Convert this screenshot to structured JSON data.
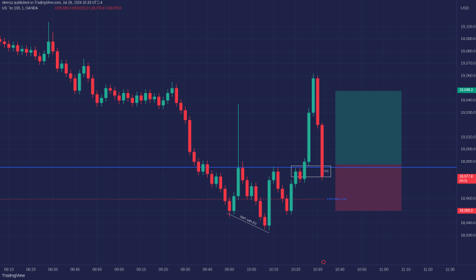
{
  "header": {
    "byline": "deeesz published on TradingView.com, Jul 26, 2024 10:33 UTC-4",
    "symbol": "US Tec 100, 1, OANDA",
    "ohlc": "O19,020.0 H19,022.0 L18,975.0 C18,978.0"
  },
  "footer": "TradingView",
  "chart_data": {
    "type": "candlestick",
    "currency": "USD",
    "x": [
      "08:06",
      "08:08",
      "08:10",
      "08:12",
      "08:14",
      "08:16",
      "08:18",
      "08:20",
      "08:22",
      "08:24",
      "08:26",
      "08:28",
      "08:30",
      "08:32",
      "08:34",
      "08:36",
      "08:38",
      "08:40",
      "08:42",
      "08:44",
      "08:46",
      "08:48",
      "08:50",
      "08:52",
      "08:54",
      "08:56",
      "08:58",
      "09:00",
      "09:02",
      "09:04",
      "09:06",
      "09:08",
      "09:10",
      "09:12",
      "09:14",
      "09:16",
      "09:18",
      "09:20",
      "09:22",
      "09:24",
      "09:26",
      "09:28",
      "09:30",
      "09:32",
      "09:34",
      "09:36",
      "09:38",
      "09:40",
      "09:42",
      "09:44",
      "09:46",
      "09:48",
      "09:50",
      "09:52",
      "09:54",
      "09:56",
      "09:58",
      "10:00",
      "10:02",
      "10:04",
      "10:06",
      "10:08",
      "10:10",
      "10:12",
      "10:14",
      "10:16",
      "10:18",
      "10:20",
      "10:22",
      "10:24",
      "10:26",
      "10:28",
      "10:30",
      "10:32"
    ],
    "open": [
      19090,
      19088,
      19086,
      19083,
      19085,
      19080,
      19082,
      19079,
      19081,
      19076,
      19072,
      19078,
      19088,
      19080,
      19066,
      19070,
      19062,
      19058,
      19048,
      19062,
      19068,
      19058,
      19045,
      19038,
      19042,
      19050,
      19048,
      19044,
      19040,
      19046,
      19042,
      19038,
      19044,
      19040,
      19046,
      19041,
      19043,
      19036,
      19040,
      19046,
      19050,
      19038,
      19032,
      19024,
      18998,
      18990,
      18982,
      18988,
      18980,
      18972,
      18978,
      18968,
      18958,
      18950,
      18962,
      18985,
      18975,
      18962,
      18970,
      18958,
      18945,
      18938,
      18975,
      18982,
      18968,
      18960,
      18950,
      18972,
      18982,
      18976,
      18990,
      19030,
      19058,
      19020
    ],
    "high": [
      19093,
      19091,
      19089,
      19088,
      19088,
      19085,
      19085,
      19084,
      19084,
      19079,
      19081,
      19104,
      19096,
      19083,
      19073,
      19073,
      19065,
      19061,
      19065,
      19074,
      19071,
      19061,
      19048,
      19045,
      19053,
      19053,
      19051,
      19047,
      19049,
      19049,
      19045,
      19047,
      19047,
      19049,
      19049,
      19046,
      19046,
      19043,
      19049,
      19055,
      19053,
      19041,
      19035,
      19027,
      19001,
      18993,
      18991,
      18991,
      18983,
      18981,
      18981,
      18971,
      18961,
      18965,
      19037,
      18990,
      18978,
      18973,
      18973,
      18961,
      18948,
      18978,
      18986,
      18985,
      18971,
      18963,
      18975,
      18985,
      18985,
      18993,
      19034,
      19062,
      19060,
      19022
    ],
    "low": [
      19085,
      19083,
      19080,
      19080,
      19077,
      19077,
      19076,
      19076,
      19073,
      19069,
      19069,
      19075,
      19077,
      19063,
      19063,
      19059,
      19055,
      19045,
      19045,
      19059,
      19055,
      19042,
      19035,
      19035,
      19039,
      19045,
      19041,
      19037,
      19037,
      19039,
      19035,
      19035,
      19037,
      19037,
      19038,
      19038,
      19033,
      19033,
      19037,
      19043,
      19035,
      19029,
      19021,
      18995,
      18987,
      18979,
      18979,
      18977,
      18969,
      18969,
      18965,
      18955,
      18945,
      18947,
      18959,
      18972,
      18959,
      18959,
      18955,
      18942,
      18935,
      18934,
      18972,
      18965,
      18957,
      18947,
      18947,
      18969,
      18973,
      18973,
      18987,
      19027,
      19017,
      18975
    ],
    "close": [
      19088,
      19086,
      19083,
      19085,
      19080,
      19082,
      19079,
      19081,
      19076,
      19072,
      19078,
      19088,
      19080,
      19066,
      19070,
      19062,
      19058,
      19048,
      19062,
      19068,
      19058,
      19045,
      19038,
      19042,
      19050,
      19048,
      19044,
      19040,
      19046,
      19042,
      19038,
      19044,
      19040,
      19046,
      19041,
      19043,
      19036,
      19040,
      19046,
      19050,
      19038,
      19032,
      19024,
      18998,
      18990,
      18982,
      18988,
      18980,
      18972,
      18978,
      18968,
      18958,
      18950,
      18962,
      18985,
      18975,
      18962,
      18970,
      18958,
      18945,
      18938,
      18975,
      18982,
      18968,
      18960,
      18950,
      18972,
      18982,
      18976,
      18990,
      19030,
      19058,
      19020,
      18978
    ],
    "up_color": "#22ab94",
    "down_color": "#f23645",
    "xlim": [
      "08:06",
      "11:33"
    ],
    "ylim": [
      18906,
      19114
    ],
    "xticks": [
      "08:10",
      "08:20",
      "08:30",
      "08:40",
      "08:50",
      "09:00",
      "09:10",
      "09:20",
      "09:30",
      "09:40",
      "09:50",
      "10:00",
      "10:10",
      "10:20",
      "10:30",
      "10:40",
      "10:50",
      "11:00",
      "11:10",
      "11:20",
      "11:30"
    ],
    "yticks": [
      {
        "value": 19100,
        "label": "19,100.0"
      },
      {
        "value": 19090,
        "label": "19,090.0"
      },
      {
        "value": 19080,
        "label": "19,080.0"
      },
      {
        "value": 19070,
        "label": "19,070.0"
      },
      {
        "value": 19060,
        "label": "19,060.0"
      },
      {
        "value": 19040,
        "label": "19,040.0"
      },
      {
        "value": 19030,
        "label": "19,030.0"
      },
      {
        "value": 19010,
        "label": "19,010.0"
      },
      {
        "value": 19000,
        "label": "19,000.0"
      },
      {
        "value": 18990,
        "label": "18,990.0"
      },
      {
        "value": 18960,
        "label": "18,960.0"
      },
      {
        "value": 18950,
        "label": "18,950.0"
      },
      {
        "value": 18940,
        "label": "18,940.0"
      },
      {
        "value": 18930,
        "label": "18,930.0"
      }
    ],
    "grid": true,
    "hline": {
      "value": 18985.6,
      "color": "#2962ff"
    },
    "prev_day_low": {
      "label": "Prev Day Low",
      "value": 18959.4,
      "color": "#f23645"
    },
    "position": {
      "x": [
        "10:38",
        "11:08"
      ],
      "target": 19047.8,
      "entry": 18987.8,
      "stop": 18950
    },
    "fvg": {
      "label": "FVG",
      "x": [
        "10:18",
        "10:36"
      ],
      "y": [
        18977.8,
        18986.7
      ]
    },
    "smt": {
      "label": "SMT with ES",
      "x": [
        "09:49",
        "10:08"
      ],
      "y": [
        18948,
        18932
      ]
    },
    "badges": [
      {
        "value": 19048.3,
        "label": "19,048.3",
        "color": "#089981"
      },
      {
        "value": 18977.8,
        "label": "18,977.8",
        "sub": "00:03",
        "color": "#f23645"
      },
      {
        "value": 18950,
        "label": "18,950.0",
        "color": "#f23645"
      }
    ]
  }
}
